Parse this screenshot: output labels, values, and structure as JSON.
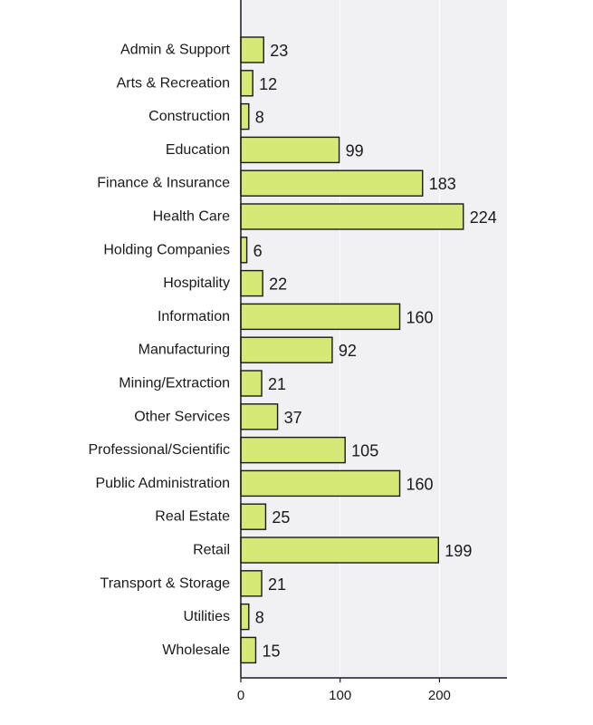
{
  "chart_data": {
    "type": "bar",
    "orientation": "horizontal",
    "categories": [
      "Admin & Support",
      "Arts & Recreation",
      "Construction",
      "Education",
      "Finance & Insurance",
      "Health Care",
      "Holding Companies",
      "Hospitality",
      "Information",
      "Manufacturing",
      "Mining/Extraction",
      "Other Services",
      "Professional/Scientific",
      "Public Administration",
      "Real Estate",
      "Retail",
      "Transport & Storage",
      "Utilities",
      "Wholesale"
    ],
    "values": [
      23,
      12,
      8,
      99,
      183,
      224,
      6,
      22,
      160,
      92,
      21,
      37,
      105,
      160,
      25,
      199,
      21,
      8,
      15
    ],
    "xticks": [
      0,
      100,
      200
    ],
    "xlim": [
      0,
      268
    ],
    "title": "",
    "xlabel": "",
    "ylabel": "",
    "grid": true,
    "colors": {
      "bar_fill": "#d6e876",
      "bar_edge": "#1a1a1a",
      "plot_background": "#f0f0f5",
      "gridline": "#ffffff"
    }
  }
}
